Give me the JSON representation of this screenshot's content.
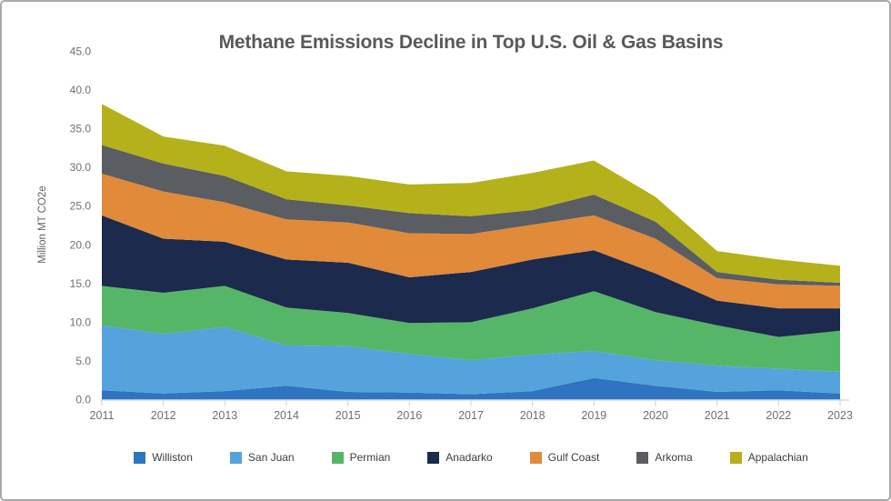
{
  "y_axis": {
    "label": "Million MT CO2e",
    "tick_labels": [
      "0.0",
      "5.0",
      "10.0",
      "15.0",
      "20.0",
      "25.0",
      "30.0",
      "35.0",
      "40.0",
      "45.0"
    ]
  },
  "chart_data": {
    "type": "area",
    "stacked": true,
    "title": "Methane Emissions Decline in Top U.S. Oil & Gas Basins",
    "ylabel": "Million MT CO2e",
    "xlabel": "",
    "x": [
      "2011",
      "2012",
      "2013",
      "2014",
      "2015",
      "2016",
      "2017",
      "2018",
      "2019",
      "2020",
      "2021",
      "2022",
      "2023"
    ],
    "ylim": [
      0,
      45
    ],
    "y_tick_step": 5,
    "grid": false,
    "legend_position": "bottom",
    "series": [
      {
        "name": "Williston",
        "color": "#2f74c0",
        "values": [
          1.2,
          0.8,
          1.1,
          1.8,
          1.0,
          0.9,
          0.7,
          1.1,
          2.8,
          1.8,
          1.0,
          1.2,
          0.8
        ]
      },
      {
        "name": "San Juan",
        "color": "#55a3dc",
        "values": [
          8.4,
          7.7,
          8.3,
          5.2,
          5.9,
          5.0,
          4.4,
          4.7,
          3.5,
          3.3,
          3.4,
          2.8,
          2.8
        ]
      },
      {
        "name": "Permian",
        "color": "#56b667",
        "values": [
          5.1,
          5.3,
          5.3,
          4.9,
          4.3,
          4.0,
          4.9,
          6.0,
          7.7,
          6.2,
          5.2,
          4.1,
          5.3
        ]
      },
      {
        "name": "Anadarko",
        "color": "#1b2a4d",
        "values": [
          9.1,
          7.0,
          5.7,
          6.2,
          6.5,
          5.9,
          6.5,
          6.3,
          5.3,
          5.0,
          3.2,
          3.7,
          2.9
        ]
      },
      {
        "name": "Gulf Coast",
        "color": "#e18a3a",
        "values": [
          5.4,
          6.1,
          5.1,
          5.2,
          5.2,
          5.7,
          4.9,
          4.5,
          4.5,
          4.5,
          2.9,
          3.1,
          2.9
        ]
      },
      {
        "name": "Arkoma",
        "color": "#5a5d62",
        "values": [
          3.7,
          3.6,
          3.4,
          2.6,
          2.2,
          2.6,
          2.3,
          1.9,
          2.7,
          2.2,
          0.8,
          0.6,
          0.4
        ]
      },
      {
        "name": "Appalachian",
        "color": "#b5b11b",
        "values": [
          5.3,
          3.5,
          3.9,
          3.6,
          3.8,
          3.7,
          4.3,
          4.8,
          4.4,
          3.2,
          2.7,
          2.6,
          2.2
        ]
      }
    ]
  },
  "axis_style": {
    "baseline_color": "#dcdcdc",
    "tick_color": "#cfcfcf",
    "tick_label_color": "#6f6f6f"
  }
}
